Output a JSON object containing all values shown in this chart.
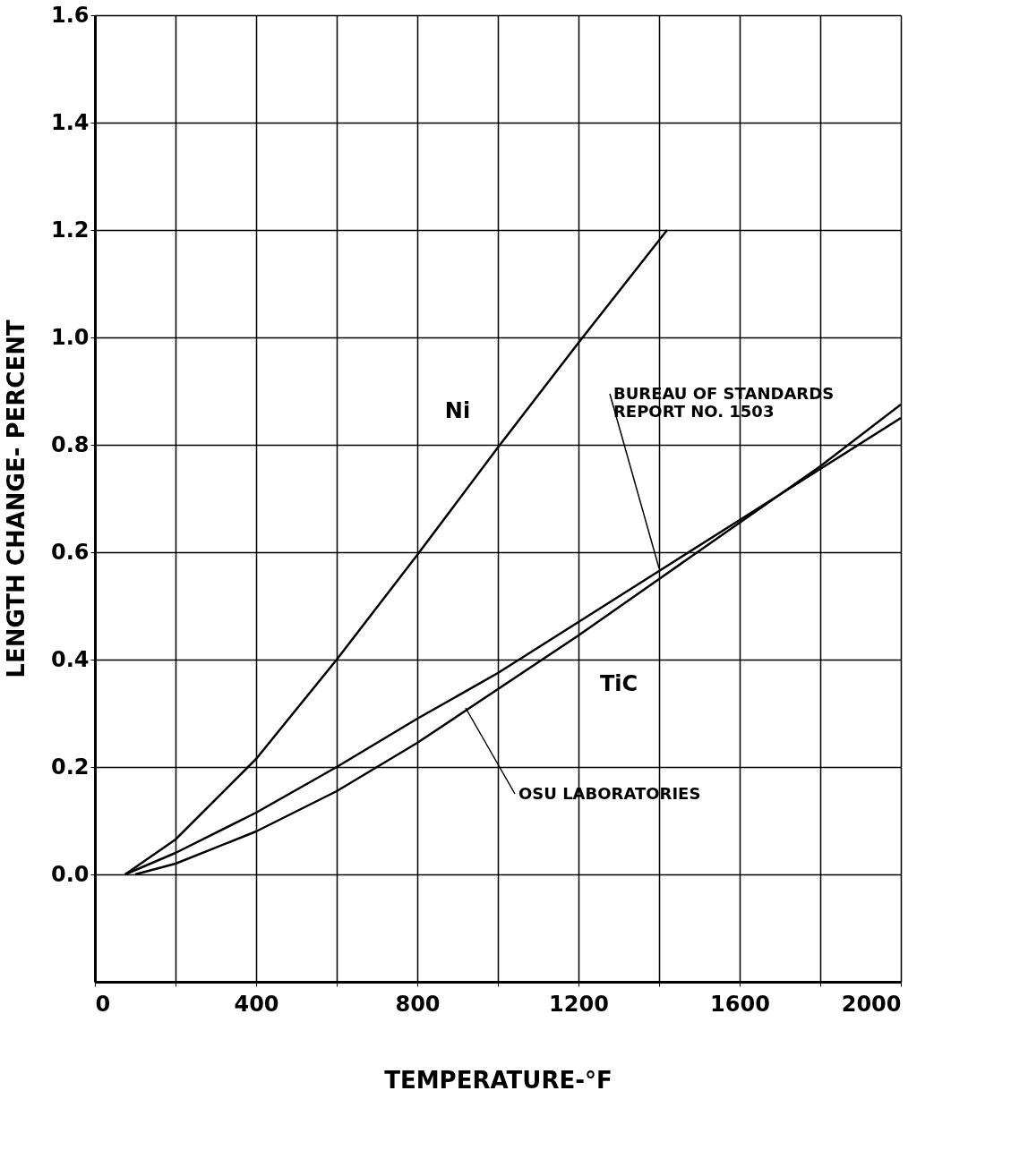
{
  "chart_data": {
    "type": "line",
    "xlabel": "TEMPERATURE-°F",
    "ylabel": "LENGTH CHANGE- PERCENT",
    "xlim": [
      0,
      2000
    ],
    "ylim": [
      -0.2,
      1.6
    ],
    "xticks": [
      0,
      {
        "value": 200,
        "label": null
      },
      400,
      {
        "value": 600,
        "label": null
      },
      800,
      {
        "value": 1000,
        "label": null
      },
      1200,
      {
        "value": 1400,
        "label": null
      },
      1600,
      {
        "value": 1800,
        "label": null
      },
      2000
    ],
    "yticks": [
      {
        "value": 0,
        "label": "0.0"
      },
      {
        "value": 0.2,
        "label": "0.2"
      },
      {
        "value": 0.4,
        "label": "0.4"
      },
      {
        "value": 0.6,
        "label": "0.6"
      },
      {
        "value": 0.8,
        "label": "0.8"
      },
      {
        "value": 1.0,
        "label": "1.0"
      },
      {
        "value": 1.2,
        "label": "1.2"
      },
      {
        "value": 1.4,
        "label": "1.4"
      },
      {
        "value": 1.6,
        "label": "1.6"
      }
    ],
    "grid": true,
    "line_style": "solid",
    "series": [
      {
        "name": "Ni",
        "color": "#000000",
        "x": [
          75,
          200,
          400,
          600,
          800,
          1000,
          1200,
          1420
        ],
        "values": [
          0,
          0.065,
          0.215,
          0.4,
          0.595,
          0.795,
          0.99,
          1.2
        ]
      },
      {
        "color": "#000000",
        "x": [
          75,
          200,
          400,
          600,
          800,
          1000,
          1200,
          1400,
          1600,
          1800,
          2000
        ],
        "values": [
          0,
          0.04,
          0.115,
          0.2,
          0.29,
          0.375,
          0.47,
          0.565,
          0.66,
          0.755,
          0.85
        ]
      },
      {
        "name": "TiC",
        "color": "#000000",
        "x": [
          100,
          200,
          400,
          600,
          800,
          1000,
          1200,
          1400,
          1600,
          1800,
          2000
        ],
        "values": [
          0,
          0.02,
          0.08,
          0.155,
          0.245,
          0.345,
          0.445,
          0.55,
          0.655,
          0.76,
          0.875
        ]
      }
    ],
    "annotations": [
      {
        "text": "BUREAU OF STANDARDS REPORT NO. 1503",
        "x": 1400,
        "y": 0.57
      },
      {
        "text": "OSU LABORATORIES",
        "x": 920,
        "y": 0.31
      }
    ]
  }
}
